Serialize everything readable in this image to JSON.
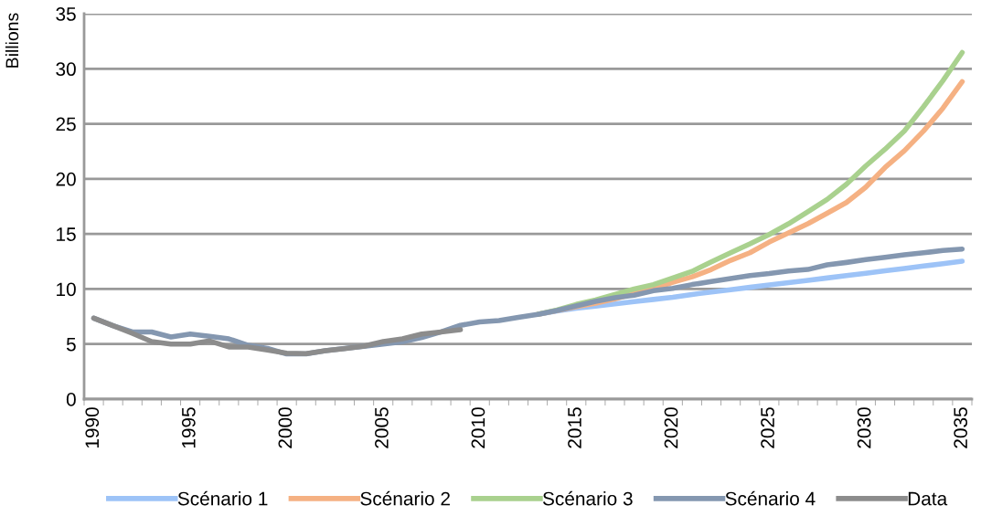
{
  "chart_data": {
    "type": "line",
    "ylabel": "Billions",
    "categories": [
      "1990",
      null,
      null,
      null,
      null,
      "1995",
      null,
      null,
      null,
      null,
      "2000",
      null,
      null,
      null,
      null,
      "2005",
      null,
      null,
      null,
      null,
      "2010",
      null,
      null,
      null,
      null,
      "2015",
      null,
      null,
      null,
      null,
      "2020",
      null,
      null,
      null,
      null,
      "2025",
      null,
      null,
      null,
      null,
      "2030",
      null,
      null,
      null,
      null,
      "2035"
    ],
    "ylim": [
      0,
      35
    ],
    "yticks": [
      0,
      5,
      10,
      15,
      20,
      25,
      30,
      35
    ],
    "grid": "y",
    "legend": "bottom",
    "marker": "none",
    "line_style": "solid",
    "series": [
      {
        "name": "Scénario 1",
        "color": "#9dc3f7",
        "values": [
          null,
          null,
          null,
          null,
          null,
          null,
          null,
          null,
          null,
          null,
          null,
          null,
          null,
          null,
          null,
          null,
          null,
          null,
          null,
          null,
          null,
          null,
          null,
          7.7,
          8.0,
          8.25,
          8.45,
          8.65,
          8.85,
          9.05,
          9.25,
          9.5,
          9.72,
          9.93,
          10.15,
          10.36,
          10.58,
          10.79,
          11.0,
          11.22,
          11.43,
          11.65,
          11.86,
          12.08,
          12.3,
          12.52
        ]
      },
      {
        "name": "Scénario 2",
        "color": "#f5b183",
        "values": [
          null,
          null,
          null,
          null,
          null,
          null,
          null,
          null,
          null,
          null,
          null,
          null,
          null,
          null,
          null,
          null,
          null,
          null,
          null,
          null,
          null,
          null,
          null,
          7.7,
          8.05,
          8.4,
          8.7,
          9.1,
          9.6,
          10.0,
          10.6,
          11.1,
          11.77,
          12.6,
          13.29,
          14.26,
          15.09,
          15.92,
          16.88,
          17.85,
          19.24,
          21.03,
          22.55,
          24.35,
          26.42,
          28.83
        ]
      },
      {
        "name": "Scénario 3",
        "color": "#a9d18e",
        "values": [
          null,
          null,
          null,
          null,
          null,
          null,
          null,
          null,
          null,
          null,
          null,
          null,
          null,
          null,
          null,
          null,
          null,
          null,
          null,
          null,
          null,
          null,
          null,
          7.7,
          8.1,
          8.6,
          9.0,
          9.5,
          10.0,
          10.4,
          11.0,
          11.6,
          12.46,
          13.3,
          14.1,
          14.95,
          15.92,
          17.02,
          18.13,
          19.51,
          21.17,
          22.69,
          24.35,
          26.56,
          28.91,
          31.48
        ]
      },
      {
        "name": "Scénario 4",
        "color": "#8497b0",
        "values": [
          7.35,
          6.66,
          6.1,
          6.1,
          5.64,
          5.91,
          5.7,
          5.47,
          4.89,
          4.6,
          4.1,
          4.1,
          4.4,
          4.6,
          4.8,
          5.0,
          5.2,
          5.6,
          6.1,
          6.7,
          7.0,
          7.13,
          7.43,
          7.7,
          8.04,
          8.46,
          8.87,
          9.2,
          9.43,
          9.84,
          10.06,
          10.4,
          10.67,
          10.94,
          11.22,
          11.4,
          11.63,
          11.77,
          12.19,
          12.41,
          12.66,
          12.88,
          13.1,
          13.29,
          13.49,
          13.63
        ]
      },
      {
        "name": "Data",
        "color": "#8c8c8c",
        "values": [
          7.35,
          6.66,
          5.97,
          5.22,
          5.0,
          5.0,
          5.28,
          4.73,
          4.73,
          4.45,
          4.17,
          4.12,
          4.4,
          4.59,
          4.81,
          5.22,
          5.47,
          5.91,
          6.1,
          6.3,
          null,
          null,
          null,
          null,
          null,
          null,
          null,
          null,
          null,
          null,
          null,
          null,
          null,
          null,
          null,
          null,
          null,
          null,
          null,
          null,
          null,
          null,
          null,
          null,
          null,
          null
        ]
      }
    ]
  }
}
